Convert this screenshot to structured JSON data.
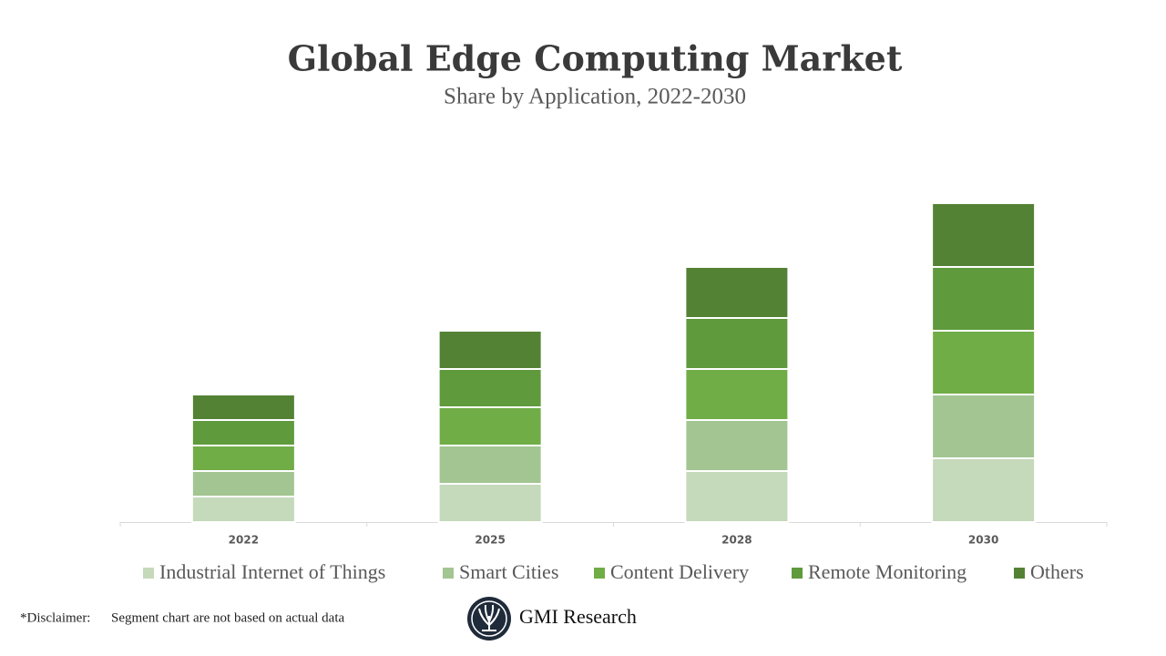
{
  "chart_data": {
    "type": "stacked_bar",
    "title": "Global Edge Computing Market",
    "subtitle": "Share by Application, 2022-2030",
    "categories": [
      "2022",
      "2025",
      "2028",
      "2030"
    ],
    "series": [
      {
        "name": "Industrial Internet of Things",
        "color": "#c5d9bb",
        "values": [
          2,
          3,
          4,
          5
        ]
      },
      {
        "name": "Smart Cities",
        "color": "#a3c592",
        "values": [
          2,
          3,
          4,
          5
        ]
      },
      {
        "name": "Content Delivery",
        "color": "#70ad47",
        "values": [
          2,
          3,
          4,
          5
        ]
      },
      {
        "name": "Remote Monitoring",
        "color": "#5f9a3c",
        "values": [
          2,
          3,
          4,
          5
        ]
      },
      {
        "name": "Others",
        "color": "#548235",
        "values": [
          2,
          3,
          4,
          5
        ]
      }
    ],
    "ylim": [
      0,
      25
    ],
    "grid": false,
    "legend": "bottom"
  },
  "footer": {
    "disclaimer_label": "*Disclaimer:",
    "disclaimer_text": "Segment chart are not based on actual data",
    "brand": "GMI Research"
  }
}
